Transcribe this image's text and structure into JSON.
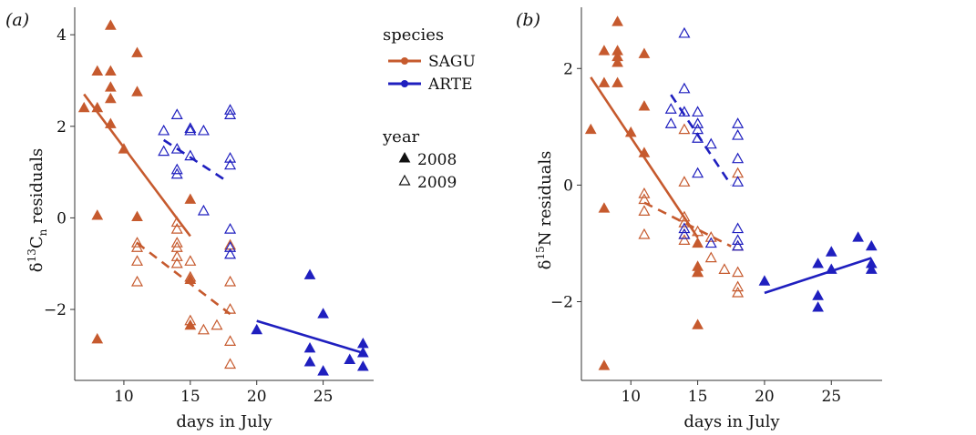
{
  "colors": {
    "SAGU": "#c65a2e",
    "ARTE": "#1f1fbf",
    "axis": "#333333"
  },
  "legend": {
    "species_title": "species",
    "species": [
      {
        "label": "SAGU",
        "key": "SAGU"
      },
      {
        "label": "ARTE",
        "key": "ARTE"
      }
    ],
    "year_title": "year",
    "years": [
      {
        "label": "2008",
        "filled": true
      },
      {
        "label": "2009",
        "filled": false
      }
    ]
  },
  "chart_data": [
    {
      "type": "scatter",
      "panel_label": "(a)",
      "xlabel": "days in July",
      "ylabel_main": "δ",
      "ylabel_sup": "13",
      "ylabel_base": "C",
      "ylabel_sub": "n",
      "ylabel_rest": " residuals",
      "xlim": [
        6.3,
        28.8
      ],
      "ylim": [
        -3.55,
        4.6
      ],
      "xticks": [
        10,
        15,
        20,
        25
      ],
      "yticks": [
        -2,
        0,
        2,
        4
      ],
      "tick_labels_x": [
        "10",
        "15",
        "20",
        "25"
      ],
      "tick_labels_y": [
        "−2",
        "0",
        "2",
        "4"
      ],
      "series": [
        {
          "species": "SAGU",
          "year": "2008",
          "points": [
            [
              7,
              2.4
            ],
            [
              8,
              3.2
            ],
            [
              8,
              2.4
            ],
            [
              8,
              0.05
            ],
            [
              8,
              -2.65
            ],
            [
              9,
              4.2
            ],
            [
              9,
              3.2
            ],
            [
              9,
              2.85
            ],
            [
              9,
              2.6
            ],
            [
              9,
              2.05
            ],
            [
              10,
              1.5
            ],
            [
              11,
              3.6
            ],
            [
              11,
              2.75
            ],
            [
              11,
              0.02
            ],
            [
              15,
              0.4
            ],
            [
              15,
              -1.35
            ],
            [
              15,
              -2.35
            ]
          ]
        },
        {
          "species": "SAGU",
          "year": "2009",
          "points": [
            [
              11,
              -0.55
            ],
            [
              11,
              -0.95
            ],
            [
              11,
              -1.4
            ],
            [
              11,
              -0.65
            ],
            [
              14,
              -0.1
            ],
            [
              14,
              -0.25
            ],
            [
              14,
              -0.55
            ],
            [
              14,
              -0.65
            ],
            [
              14,
              -0.85
            ],
            [
              14,
              -1.0
            ],
            [
              15,
              -0.95
            ],
            [
              15,
              -1.3
            ],
            [
              15,
              -2.25
            ],
            [
              16,
              -2.45
            ],
            [
              17,
              -2.35
            ],
            [
              18,
              -0.6
            ],
            [
              18,
              -1.4
            ],
            [
              18,
              -2.0
            ],
            [
              18,
              -2.7
            ],
            [
              18,
              -3.2
            ]
          ]
        },
        {
          "species": "ARTE",
          "year": "2008",
          "points": [
            [
              20,
              -2.45
            ],
            [
              24,
              -1.25
            ],
            [
              24,
              -2.85
            ],
            [
              24,
              -3.15
            ],
            [
              25,
              -2.1
            ],
            [
              25,
              -3.35
            ],
            [
              27,
              -3.1
            ],
            [
              28,
              -2.75
            ],
            [
              28,
              -2.95
            ],
            [
              28,
              -3.25
            ]
          ]
        },
        {
          "species": "ARTE",
          "year": "2009",
          "points": [
            [
              13,
              1.9
            ],
            [
              13,
              1.45
            ],
            [
              14,
              2.25
            ],
            [
              14,
              1.5
            ],
            [
              14,
              1.05
            ],
            [
              14,
              0.95
            ],
            [
              15,
              1.95
            ],
            [
              15,
              1.9
            ],
            [
              15,
              1.35
            ],
            [
              16,
              1.9
            ],
            [
              16,
              0.15
            ],
            [
              18,
              2.35
            ],
            [
              18,
              2.25
            ],
            [
              18,
              1.3
            ],
            [
              18,
              1.15
            ],
            [
              18,
              -0.25
            ],
            [
              18,
              -0.65
            ],
            [
              18,
              -0.8
            ]
          ]
        }
      ],
      "fits": [
        {
          "species": "SAGU",
          "year": "2008",
          "dashed": false,
          "x": [
            7,
            15
          ],
          "y": [
            2.7,
            -0.4
          ]
        },
        {
          "species": "SAGU",
          "year": "2009",
          "dashed": true,
          "x": [
            11,
            18
          ],
          "y": [
            -0.55,
            -2.1
          ]
        },
        {
          "species": "ARTE",
          "year": "2008",
          "dashed": false,
          "x": [
            20,
            28
          ],
          "y": [
            -2.25,
            -2.95
          ]
        },
        {
          "species": "ARTE",
          "year": "2009",
          "dashed": true,
          "x": [
            13,
            17.5
          ],
          "y": [
            1.7,
            0.85
          ]
        }
      ]
    },
    {
      "type": "scatter",
      "panel_label": "(b)",
      "xlabel": "days in July",
      "ylabel_main": "δ",
      "ylabel_sup": "15",
      "ylabel_base": "N",
      "ylabel_sub": "",
      "ylabel_rest": " residuals",
      "xlim": [
        6.3,
        28.8
      ],
      "ylim": [
        -3.35,
        3.05
      ],
      "xticks": [
        10,
        15,
        20,
        25
      ],
      "yticks": [
        -2,
        0,
        2
      ],
      "tick_labels_x": [
        "10",
        "15",
        "20",
        "25"
      ],
      "tick_labels_y": [
        "−2",
        "0",
        "2"
      ],
      "series": [
        {
          "species": "SAGU",
          "year": "2008",
          "points": [
            [
              7,
              0.95
            ],
            [
              8,
              2.3
            ],
            [
              8,
              1.75
            ],
            [
              8,
              -0.4
            ],
            [
              8,
              -3.1
            ],
            [
              9,
              2.8
            ],
            [
              9,
              2.3
            ],
            [
              9,
              2.2
            ],
            [
              9,
              2.1
            ],
            [
              9,
              1.75
            ],
            [
              10,
              0.9
            ],
            [
              11,
              2.25
            ],
            [
              11,
              1.35
            ],
            [
              11,
              0.55
            ],
            [
              15,
              -1.0
            ],
            [
              15,
              -1.4
            ],
            [
              15,
              -1.5
            ],
            [
              15,
              -2.4
            ]
          ]
        },
        {
          "species": "SAGU",
          "year": "2009",
          "points": [
            [
              11,
              -0.15
            ],
            [
              11,
              -0.25
            ],
            [
              11,
              -0.45
            ],
            [
              11,
              -0.85
            ],
            [
              14,
              0.95
            ],
            [
              14,
              0.05
            ],
            [
              14,
              -0.55
            ],
            [
              14,
              -0.65
            ],
            [
              14,
              -0.85
            ],
            [
              14,
              -0.95
            ],
            [
              15,
              -0.8
            ],
            [
              15,
              -1.5
            ],
            [
              16,
              -0.9
            ],
            [
              16,
              -1.25
            ],
            [
              17,
              -1.45
            ],
            [
              18,
              0.2
            ],
            [
              18,
              -1.05
            ],
            [
              18,
              -1.5
            ],
            [
              18,
              -1.75
            ],
            [
              18,
              -1.85
            ]
          ]
        },
        {
          "species": "ARTE",
          "year": "2008",
          "points": [
            [
              20,
              -1.65
            ],
            [
              24,
              -1.35
            ],
            [
              24,
              -1.9
            ],
            [
              24,
              -2.1
            ],
            [
              25,
              -1.15
            ],
            [
              25,
              -1.45
            ],
            [
              27,
              -0.9
            ],
            [
              28,
              -1.05
            ],
            [
              28,
              -1.35
            ],
            [
              28,
              -1.45
            ]
          ]
        },
        {
          "species": "ARTE",
          "year": "2009",
          "points": [
            [
              13,
              1.3
            ],
            [
              13,
              1.05
            ],
            [
              14,
              2.6
            ],
            [
              14,
              1.65
            ],
            [
              14,
              1.25
            ],
            [
              14,
              -0.75
            ],
            [
              14,
              -0.85
            ],
            [
              15,
              1.25
            ],
            [
              15,
              1.05
            ],
            [
              15,
              0.95
            ],
            [
              15,
              0.8
            ],
            [
              15,
              0.2
            ],
            [
              16,
              0.7
            ],
            [
              16,
              -1.0
            ],
            [
              18,
              1.05
            ],
            [
              18,
              0.85
            ],
            [
              18,
              0.45
            ],
            [
              18,
              0.05
            ],
            [
              18,
              -0.75
            ],
            [
              18,
              -0.95
            ],
            [
              18,
              -1.05
            ]
          ]
        }
      ],
      "fits": [
        {
          "species": "SAGU",
          "year": "2008",
          "dashed": false,
          "x": [
            7,
            15
          ],
          "y": [
            1.85,
            -0.9
          ]
        },
        {
          "species": "SAGU",
          "year": "2009",
          "dashed": true,
          "x": [
            11,
            17.5
          ],
          "y": [
            -0.3,
            -1.05
          ]
        },
        {
          "species": "ARTE",
          "year": "2008",
          "dashed": false,
          "x": [
            20,
            28
          ],
          "y": [
            -1.85,
            -1.25
          ]
        },
        {
          "species": "ARTE",
          "year": "2009",
          "dashed": true,
          "x": [
            13,
            17.5
          ],
          "y": [
            1.55,
            0.0
          ]
        }
      ]
    }
  ]
}
